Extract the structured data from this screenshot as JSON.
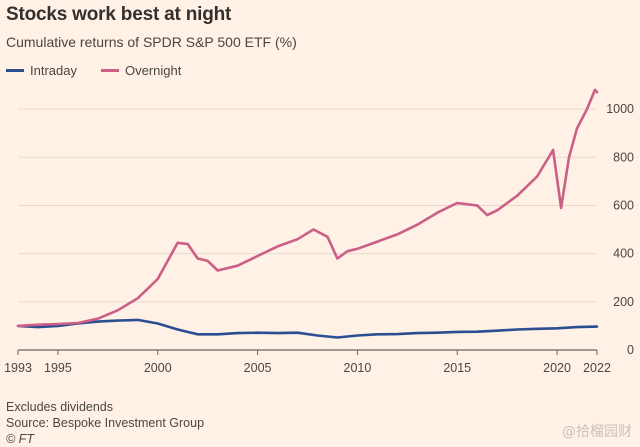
{
  "chart_data": {
    "type": "line",
    "title": "Stocks work best at night",
    "subtitle": "Cumulative returns of SPDR S&P 500 ETF (%)",
    "xlabel": "",
    "ylabel": "",
    "xlim": [
      1993,
      2022
    ],
    "ylim": [
      0,
      1100
    ],
    "x_ticks": [
      1993,
      1995,
      2000,
      2005,
      2010,
      2015,
      2020,
      2022
    ],
    "y_ticks": [
      0,
      200,
      400,
      600,
      800,
      1000
    ],
    "legend_position": "top-left",
    "series": [
      {
        "name": "Intraday",
        "color": "#2b4e93",
        "x": [
          1993.0,
          1994.0,
          1995.0,
          1996.0,
          1997.0,
          1998.0,
          1999.0,
          2000.0,
          2001.0,
          2002.0,
          2003.0,
          2004.0,
          2005.0,
          2006.0,
          2007.0,
          2008.0,
          2009.0,
          2010.0,
          2011.0,
          2012.0,
          2013.0,
          2014.0,
          2015.0,
          2016.0,
          2017.0,
          2018.0,
          2019.0,
          2020.0,
          2021.0,
          2022.0
        ],
        "values": [
          100,
          95,
          100,
          110,
          118,
          122,
          125,
          110,
          85,
          65,
          65,
          70,
          72,
          70,
          72,
          60,
          52,
          60,
          65,
          66,
          70,
          72,
          75,
          76,
          80,
          85,
          88,
          90,
          95,
          97
        ]
      },
      {
        "name": "Overnight",
        "color": "#cc5f86",
        "x": [
          1993.0,
          1994.0,
          1995.0,
          1996.0,
          1997.0,
          1998.0,
          1999.0,
          2000.0,
          2000.5,
          2001.0,
          2001.5,
          2002.0,
          2002.5,
          2003.0,
          2004.0,
          2005.0,
          2006.0,
          2007.0,
          2007.8,
          2008.5,
          2009.0,
          2009.5,
          2010.0,
          2011.0,
          2012.0,
          2013.0,
          2014.0,
          2015.0,
          2016.0,
          2016.5,
          2017.0,
          2018.0,
          2019.0,
          2019.8,
          2020.2,
          2020.6,
          2021.0,
          2021.5,
          2021.9,
          2022.0
        ],
        "values": [
          100,
          105,
          108,
          112,
          130,
          165,
          215,
          295,
          370,
          445,
          440,
          380,
          370,
          330,
          350,
          390,
          430,
          460,
          500,
          470,
          380,
          410,
          420,
          450,
          480,
          520,
          570,
          610,
          600,
          560,
          580,
          640,
          720,
          830,
          590,
          800,
          920,
          1000,
          1080,
          1070
        ]
      }
    ]
  },
  "notes": {
    "note1": "Excludes dividends",
    "note2": "Source: Bespoke Investment Group",
    "copyright": "© FT"
  },
  "watermark": "@拾榴园财"
}
